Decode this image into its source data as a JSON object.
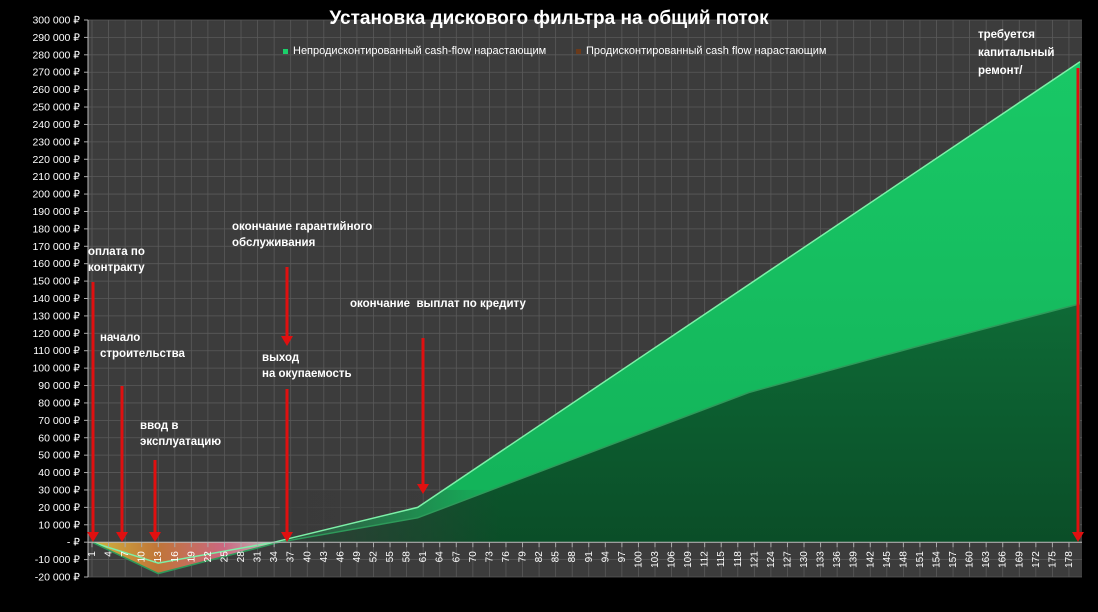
{
  "chart_data": {
    "type": "area",
    "title": "Установка дискового фильтра на общий поток",
    "currency_suffix": " ₽",
    "zero_label": "- ₽",
    "ylim": [
      -20000,
      300000
    ],
    "y_step": 10000,
    "x_range": [
      1,
      180
    ],
    "x_tick_labels": [
      "1",
      "4",
      "7",
      "10",
      "13",
      "16",
      "19",
      "22",
      "25",
      "28",
      "31",
      "34",
      "37",
      "40",
      "43",
      "46",
      "49",
      "52",
      "55",
      "58",
      "61",
      "64",
      "67",
      "70",
      "73",
      "76",
      "79",
      "82",
      "85",
      "88",
      "91",
      "94",
      "97",
      "100",
      "103",
      "106",
      "109",
      "112",
      "115",
      "118",
      "121",
      "124",
      "127",
      "130",
      "133",
      "136",
      "139",
      "142",
      "145",
      "148",
      "151",
      "154",
      "157",
      "160",
      "163",
      "166",
      "169",
      "172",
      "175",
      "178"
    ],
    "series": [
      {
        "name": "Непродисконтированный cash-flow нарастающим",
        "color": "#16c060",
        "points": [
          [
            1,
            0
          ],
          [
            13,
            -12000
          ],
          [
            34,
            0
          ],
          [
            60,
            20000
          ],
          [
            180,
            276000
          ]
        ]
      },
      {
        "name": "Продисконтированный cash flow нарастающим",
        "color": "#0c5c30",
        "points": [
          [
            1,
            0
          ],
          [
            13,
            -18000
          ],
          [
            35,
            0
          ],
          [
            60,
            14000
          ],
          [
            90,
            50000
          ],
          [
            120,
            86000
          ],
          [
            150,
            112000
          ],
          [
            180,
            137000
          ]
        ]
      }
    ],
    "grid": true,
    "legend_position": "top",
    "annotations": [
      {
        "id": "pay",
        "text": "оплата по\nконтракту"
      },
      {
        "id": "build",
        "text": "начало\nстроительства"
      },
      {
        "id": "commission",
        "text": "ввод в\nэксплуатацию"
      },
      {
        "id": "warranty",
        "text": "окончание гарантийного\nобслуживания"
      },
      {
        "id": "payback",
        "text": "выход\nна окупаемость"
      },
      {
        "id": "credit",
        "text": "окончание  выплат по кредиту"
      },
      {
        "id": "repair",
        "text": "требуется\nкапитальный\nремонт/"
      }
    ]
  }
}
